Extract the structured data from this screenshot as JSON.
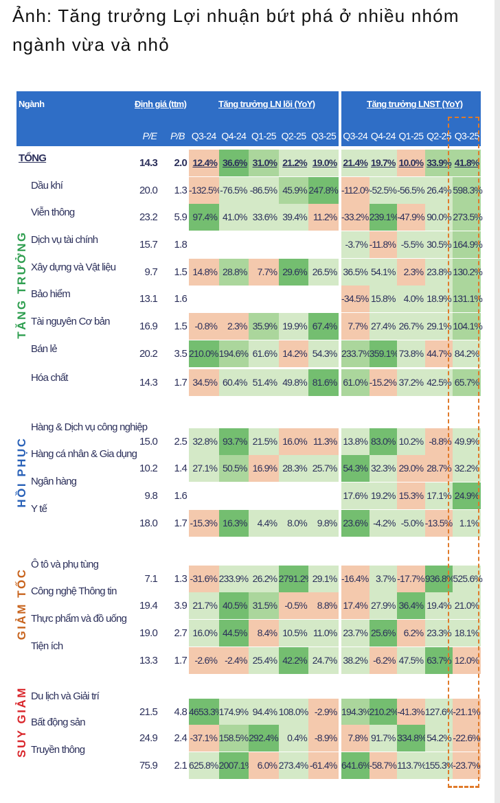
{
  "caption": "Ảnh: Tăng trưởng Lợi nhuận bứt phá ở nhiều nhóm ngành vừa và nhỏ",
  "header": {
    "sector": "Ngành",
    "valuation": "Định giá (ttm)",
    "core_profit": "Tăng trưởng LN lõi (YoY)",
    "npat": "Tăng trưởng LNST (YoY)",
    "pe": "P/E",
    "pb": "P/B",
    "quarters": [
      "Q3-24",
      "Q4-24",
      "Q1-25",
      "Q2-25",
      "Q3-25"
    ]
  },
  "colors": {
    "o": "#f4c9ad",
    "1": "#d4e9c7",
    "2": "#abd69c",
    "3": "#74be70",
    "header": "#2f6ec6",
    "highlight": "#e07a2a"
  },
  "groups": [
    {
      "label": "TĂNG TRƯỞNG",
      "color": "#2e9e4f",
      "rows": [
        {
          "name": "TỔNG",
          "total": true,
          "pe": "14.3",
          "pb": "2.0",
          "ln": [
            "12.4%",
            "36.6%",
            "31.0%",
            "21.2%",
            "19.0%"
          ],
          "lnc": "o3211",
          "st": [
            "21.4%",
            "19.7%",
            "10.0%",
            "33.9%",
            "41.8%"
          ],
          "stc": "11o22"
        },
        {
          "name": "Dầu khí",
          "pe": "20.0",
          "pb": "1.3",
          "ln": [
            "-132.5%",
            "-76.5%",
            "-86.5%",
            "45.9%",
            "247.8%"
          ],
          "lnc": "o1123",
          "st": [
            "-112.0%",
            "-52.5%",
            "-56.5%",
            "26.4%",
            "598.3%"
          ],
          "stc": "o1112"
        },
        {
          "name": "Viễn thông",
          "pe": "23.2",
          "pb": "5.9",
          "ln": [
            "97.4%",
            "41.0%",
            "33.6%",
            "39.4%",
            "11.2%"
          ],
          "lnc": "3111o",
          "st": [
            "-33.2%",
            "239.1%",
            "-47.9%",
            "90.0%",
            "273.5%"
          ],
          "stc": "o3o12"
        },
        {
          "name": "Dịch vụ tài chính",
          "pe": "15.7",
          "pb": "1.8",
          "ln": [],
          "lnc": "",
          "st": [
            "-3.7%",
            "-11.8%",
            "-5.5%",
            "30.5%",
            "164.9%"
          ],
          "stc": "1o112"
        },
        {
          "name": "Xây dựng và Vật liệu",
          "pe": "9.7",
          "pb": "1.5",
          "ln": [
            "14.8%",
            "28.8%",
            "7.7%",
            "29.6%",
            "26.5%"
          ],
          "lnc": "o2o31",
          "st": [
            "36.5%",
            "54.1%",
            "2.3%",
            "23.8%",
            "130.2%"
          ],
          "stc": "11o12"
        },
        {
          "name": "Bảo hiểm",
          "pe": "13.1",
          "pb": "1.6",
          "ln": [],
          "lnc": "",
          "st": [
            "-34.5%",
            "15.8%",
            "4.0%",
            "18.9%",
            "131.1%"
          ],
          "stc": "o1112"
        },
        {
          "name": "Tài nguyên Cơ bản",
          "pe": "16.9",
          "pb": "1.5",
          "ln": [
            "-0.8%",
            "2.3%",
            "35.9%",
            "19.9%",
            "67.4%"
          ],
          "lnc": "oo213",
          "st": [
            "7.7%",
            "27.4%",
            "26.7%",
            "29.1%",
            "104.1%"
          ],
          "stc": "o1112"
        },
        {
          "name": "Bán lẻ",
          "pe": "20.2",
          "pb": "3.5",
          "ln": [
            "210.0%",
            "194.6%",
            "61.6%",
            "14.2%",
            "54.3%"
          ],
          "lnc": "321o1",
          "st": [
            "233.7%",
            "359.1%",
            "73.8%",
            "44.7%",
            "84.2%"
          ],
          "stc": "231o1"
        },
        {
          "name": "Hóa chất",
          "pe": "14.3",
          "pb": "1.7",
          "ln": [
            "34.5%",
            "60.4%",
            "51.4%",
            "49.8%",
            "81.6%"
          ],
          "lnc": "o1113",
          "st": [
            "61.0%",
            "-15.2%",
            "37.2%",
            "42.5%",
            "65.7%"
          ],
          "stc": "2o112"
        }
      ]
    },
    {
      "label": "HỒI PHỤC",
      "color": "#2a62b8",
      "rows": [
        {
          "name": "Hàng & Dịch vụ công nghiệp",
          "pe": "15.0",
          "pb": "2.5",
          "ln": [
            "32.8%",
            "93.7%",
            "21.5%",
            "16.0%",
            "11.3%"
          ],
          "lnc": "131oo",
          "st": [
            "13.8%",
            "83.0%",
            "10.2%",
            "-8.8%",
            "49.9%"
          ],
          "stc": "131o1"
        },
        {
          "name": "Hàng cá nhân & Gia dụng",
          "pe": "10.2",
          "pb": "1.4",
          "ln": [
            "27.1%",
            "50.5%",
            "16.9%",
            "28.3%",
            "25.7%"
          ],
          "lnc": "12o11",
          "st": [
            "54.3%",
            "32.3%",
            "29.0%",
            "28.7%",
            "32.2%"
          ],
          "stc": "31oo1"
        },
        {
          "name": "Ngân hàng",
          "pe": "9.8",
          "pb": "1.6",
          "ln": [],
          "lnc": "",
          "st": [
            "17.6%",
            "19.2%",
            "15.3%",
            "17.1%",
            "24.9%"
          ],
          "stc": "11o13"
        },
        {
          "name": "Y tế",
          "pe": "18.0",
          "pb": "1.7",
          "ln": [
            "-15.3%",
            "16.3%",
            "4.4%",
            "8.0%",
            "9.8%"
          ],
          "lnc": "o3111",
          "st": [
            "23.6%",
            "-4.2%",
            "-5.0%",
            "-13.5%",
            "1.1%"
          ],
          "stc": "311o1"
        }
      ]
    },
    {
      "label": "GIẢM TỐC",
      "color": "#c8641e",
      "rows": [
        {
          "name": "Ô tô và phụ tùng",
          "pe": "7.1",
          "pb": "1.3",
          "ln": [
            "-31.6%",
            "233.9%",
            "26.2%",
            "2791.2%",
            "29.1%"
          ],
          "lnc": "o1131",
          "st": [
            "-16.4%",
            "3.7%",
            "-17.7%",
            "936.8%",
            "525.6%"
          ],
          "stc": "o1o31"
        },
        {
          "name": "Công nghệ Thông tin",
          "pe": "19.4",
          "pb": "3.9",
          "ln": [
            "21.7%",
            "40.5%",
            "31.5%",
            "-0.5%",
            "8.8%"
          ],
          "lnc": "132oo",
          "st": [
            "17.4%",
            "27.9%",
            "36.4%",
            "19.4%",
            "21.0%"
          ],
          "stc": "o1311"
        },
        {
          "name": "Thực phẩm và đồ uống",
          "pe": "19.0",
          "pb": "2.7",
          "ln": [
            "16.0%",
            "44.5%",
            "8.4%",
            "10.5%",
            "11.0%"
          ],
          "lnc": "13o11",
          "st": [
            "23.7%",
            "25.6%",
            "6.2%",
            "23.3%",
            "18.1%"
          ],
          "stc": "13o11"
        },
        {
          "name": "Tiện ích",
          "pe": "13.3",
          "pb": "1.7",
          "ln": [
            "-2.6%",
            "-2.4%",
            "25.4%",
            "42.2%",
            "24.7%"
          ],
          "lnc": "oo131",
          "st": [
            "38.2%",
            "-6.2%",
            "47.5%",
            "63.7%",
            "12.0%"
          ],
          "stc": "1o13o"
        }
      ]
    },
    {
      "label": "SUY GIẢM",
      "color": "#d9262b",
      "rows": [
        {
          "name": "Du lịch và Giải trí",
          "pe": "21.5",
          "pb": "4.8",
          "ln": [
            "4653.3%",
            "174.9%",
            "94.4%",
            "108.0%",
            "-2.9%"
          ],
          "lnc": "3111o",
          "st": [
            "194.3%",
            "210.2%",
            "-41.3%",
            "127.6%",
            "-21.1%"
          ],
          "stc": "23o1o"
        },
        {
          "name": "Bất động sản",
          "pe": "24.9",
          "pb": "2.4",
          "ln": [
            "-37.1%",
            "158.5%",
            "292.4%",
            "0.4%",
            "-8.9%"
          ],
          "lnc": "o231o",
          "st": [
            "7.8%",
            "91.7%",
            "334.8%",
            "54.2%",
            "-22.6%"
          ],
          "stc": "o131o"
        },
        {
          "name": "Truyền thông",
          "pe": "75.9",
          "pb": "2.1",
          "ln": [
            "625.8%",
            "2007.1%",
            "6.0%",
            "273.4%",
            "-61.4%"
          ],
          "lnc": "13o1o",
          "st": [
            "641.6%",
            "-58.7%",
            "113.7%",
            "155.3%",
            "-23.7%"
          ],
          "stc": "3o11o"
        }
      ]
    }
  ]
}
